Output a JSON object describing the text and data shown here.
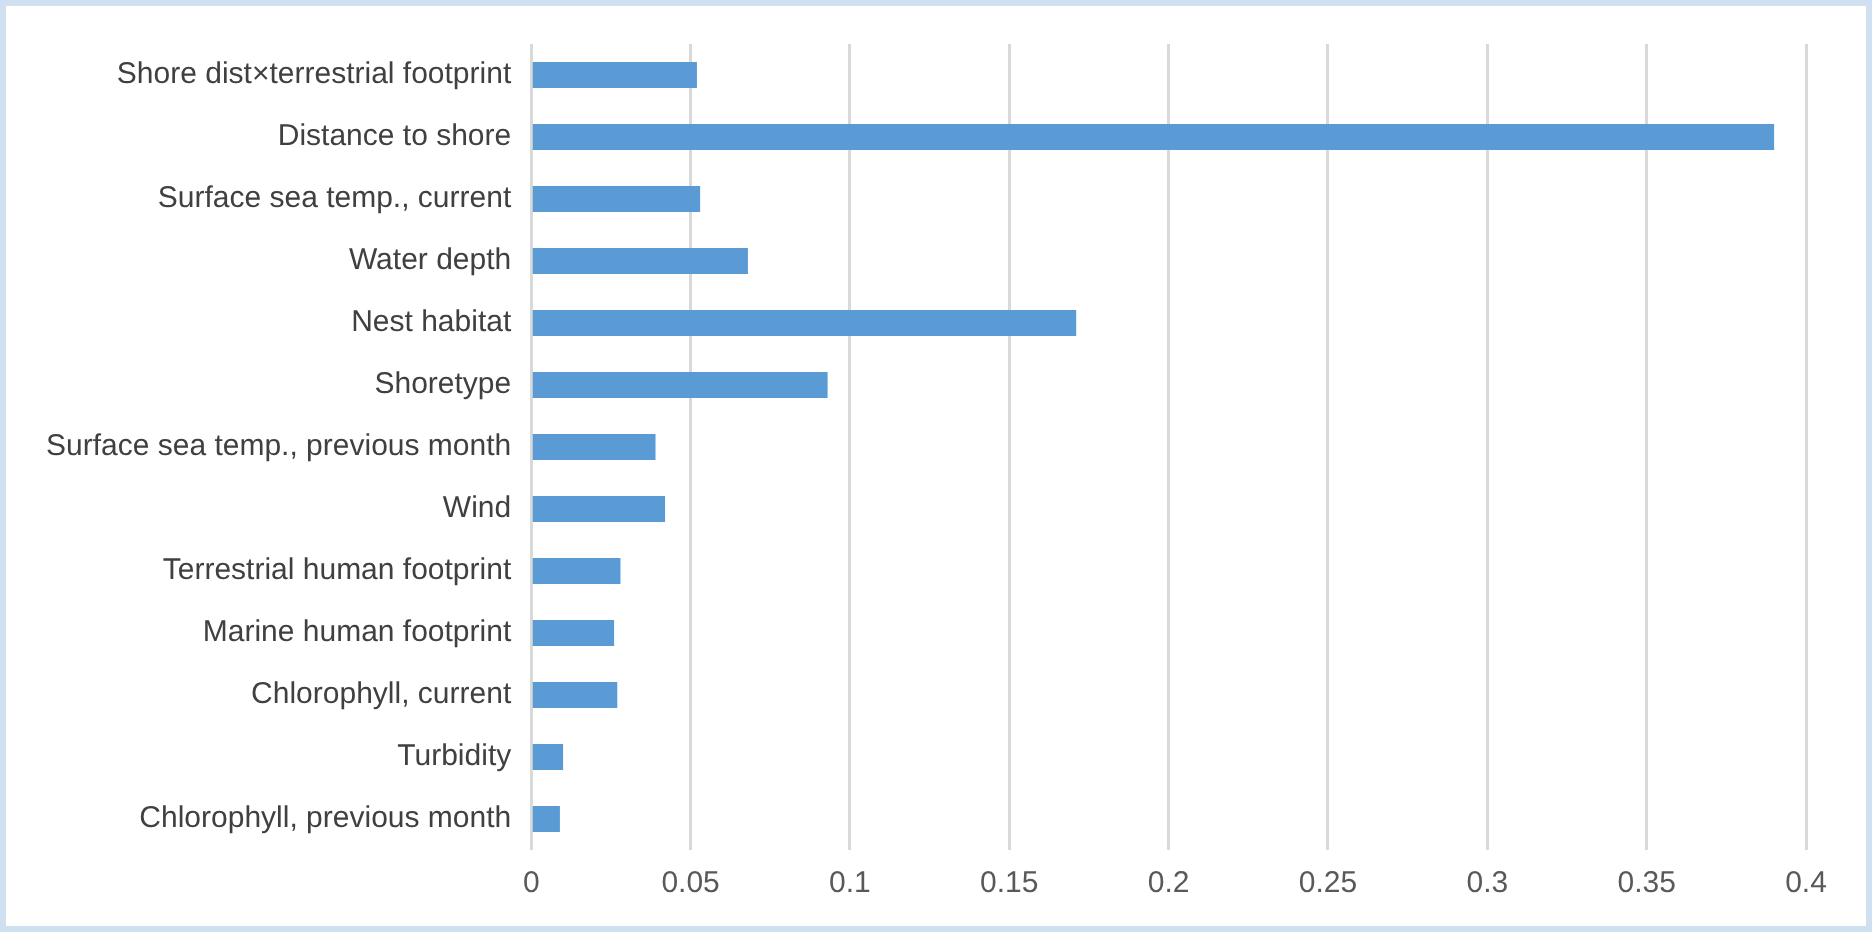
{
  "chart_data": {
    "type": "bar",
    "orientation": "horizontal",
    "categories": [
      "Shore dist×terrestrial footprint",
      "Distance to shore",
      "Surface sea temp., current",
      "Water depth",
      "Nest habitat",
      "Shoretype",
      "Surface sea temp., previous month",
      "Wind",
      "Terrestrial human footprint",
      "Marine human footprint",
      "Chlorophyll, current",
      "Turbidity",
      "Chlorophyll, previous month"
    ],
    "values": [
      0.052,
      0.39,
      0.053,
      0.068,
      0.171,
      0.093,
      0.039,
      0.042,
      0.028,
      0.026,
      0.027,
      0.01,
      0.009
    ],
    "color": "#5b9bd5",
    "xlim": [
      0,
      0.4
    ],
    "xticks": [
      0,
      0.05,
      0.1,
      0.15,
      0.2,
      0.25,
      0.3,
      0.35,
      0.4
    ],
    "grid": "x"
  }
}
